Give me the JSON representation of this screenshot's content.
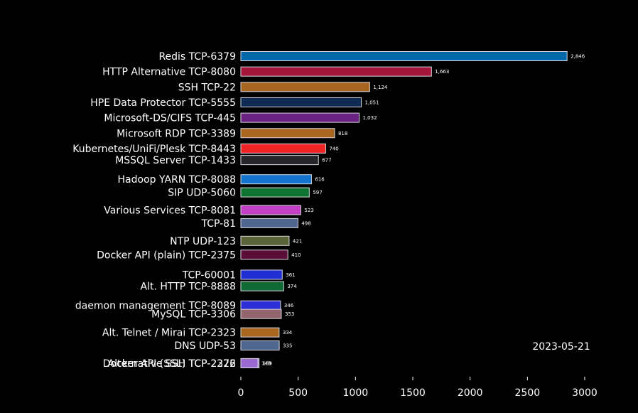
{
  "chart_data": {
    "type": "bar",
    "orientation": "horizontal",
    "title": "",
    "date": "2023-05-21",
    "xlabel": "",
    "ylabel": "",
    "xlim": [
      0,
      3000
    ],
    "xticks": [
      "0",
      "500",
      "1000",
      "1500",
      "2000",
      "2500",
      "3000"
    ],
    "grid": false,
    "bars": [
      {
        "label": "Redis TCP-6379",
        "value": 2846,
        "value_label": "2,846",
        "color": "#0068a8",
        "pos": 0
      },
      {
        "label": "HTTP Alternative TCP-8080",
        "value": 1663,
        "value_label": "1,663",
        "color": "#a5153a",
        "pos": 1
      },
      {
        "label": "SSH TCP-22",
        "value": 1124,
        "value_label": "1,124",
        "color": "#a8651f",
        "pos": 2
      },
      {
        "label": "HPE Data Protector TCP-5555",
        "value": 1051,
        "value_label": "1,051",
        "color": "#0d2a52",
        "pos": 3
      },
      {
        "label": "Microsoft-DS/CIFS TCP-445",
        "value": 1032,
        "value_label": "1,032",
        "color": "#6a2280",
        "pos": 4
      },
      {
        "label": "Microsoft RDP TCP-3389",
        "value": 818,
        "value_label": "818",
        "color": "#a8661e",
        "pos": 5
      },
      {
        "label": "Kubernetes/UniFi/Plesk TCP-8443",
        "value": 740,
        "value_label": "740",
        "color": "#ee2424",
        "pos": 6
      },
      {
        "label": "MSSQL Server TCP-1433",
        "value": 677,
        "value_label": "677",
        "color": "#26262a",
        "pos": 6.75
      },
      {
        "label": "Hadoop YARN TCP-8088",
        "value": 616,
        "value_label": "616",
        "color": "#1274cc",
        "pos": 8
      },
      {
        "label": "SIP UDP-5060",
        "value": 597,
        "value_label": "597",
        "color": "#0e7430",
        "pos": 8.85
      },
      {
        "label": "Various Services TCP-8081",
        "value": 523,
        "value_label": "523",
        "color": "#c23fc6",
        "pos": 10
      },
      {
        "label": "TCP-81",
        "value": 498,
        "value_label": "498",
        "color": "#4e6690",
        "pos": 10.85
      },
      {
        "label": "NTP UDP-123",
        "value": 421,
        "value_label": "421",
        "color": "#5a6438",
        "pos": 12
      },
      {
        "label": "Docker API (plain) TCP-2375",
        "value": 410,
        "value_label": "410",
        "color": "#5a0e36",
        "pos": 12.9
      },
      {
        "label": "TCP-60001",
        "value": 361,
        "value_label": "361",
        "color": "#1e2ed2",
        "pos": 14.2
      },
      {
        "label": "Alt. HTTP TCP-8888",
        "value": 374,
        "value_label": "374",
        "color": "#0e6a32",
        "pos": 14.95
      },
      {
        "label": "daemon management TCP-8089",
        "value": 346,
        "value_label": "346",
        "color": "#2e2ed6",
        "pos": 16.2
      },
      {
        "label": "MySQL TCP-3306",
        "value": 353,
        "value_label": "353",
        "color": "#94646e",
        "pos": 16.75
      },
      {
        "label": "Alt. Telnet / Mirai TCP-2323",
        "value": 334,
        "value_label": "334",
        "color": "#a8661e",
        "pos": 17.95
      },
      {
        "label": "DNS UDP-53",
        "value": 335,
        "value_label": "335",
        "color": "#4e6690",
        "pos": 18.8
      },
      {
        "label": "Alternative SSH TCP-2222",
        "value": 159,
        "value_label": "159",
        "color": "#9a6ad0",
        "pos": 19.95
      },
      {
        "label": "Docker API (SSL) TCP-2376",
        "value": 149,
        "value_label": "149",
        "color": "#9a6ad0",
        "pos": 19.95
      }
    ]
  }
}
